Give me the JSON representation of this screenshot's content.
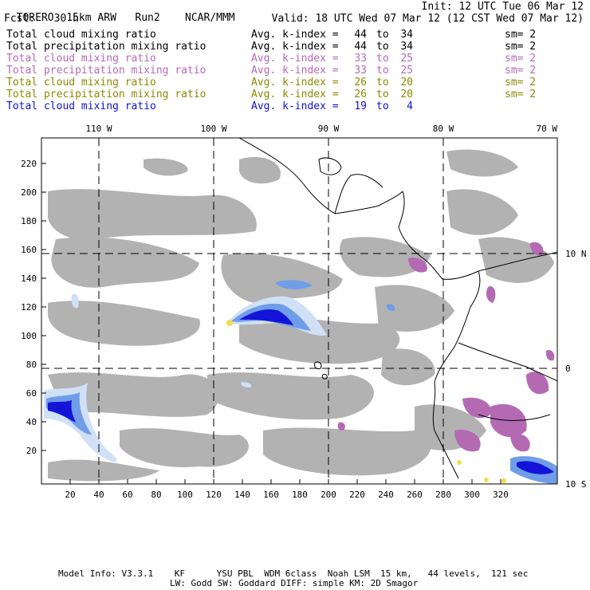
{
  "header": {
    "model": "TORERO",
    "resolution": "15km ARW",
    "run": "Run2",
    "org": "NCAR/MMM",
    "init": "Init: 12 UTC Tue 06 Mar 12",
    "fcst_label": "Fcst:",
    "fcst_value": "30 h",
    "valid": "Valid: 18 UTC Wed 07 Mar 12 (12 CST Wed 07 Mar 12)"
  },
  "legend_rows": [
    {
      "field": "Total cloud mixing ratio",
      "label": "Avg. k-index =",
      "k_from": "44",
      "to": "to",
      "k_to": "34",
      "sm": "sm= 2",
      "color": "#000000"
    },
    {
      "field": "Total precipitation mixing ratio",
      "label": "Avg. k-index =",
      "k_from": "44",
      "to": "to",
      "k_to": "34",
      "sm": "sm= 2",
      "color": "#000000"
    },
    {
      "field": "Total cloud mixing ratio",
      "label": "Avg. k-index =",
      "k_from": "33",
      "to": "to",
      "k_to": "25",
      "sm": "sm= 2",
      "color": "#b36ab3"
    },
    {
      "field": "Total precipitation mixing ratio",
      "label": "Avg. k-index =",
      "k_from": "33",
      "to": "to",
      "k_to": "25",
      "sm": "sm= 2",
      "color": "#b36ab3"
    },
    {
      "field": "Total cloud mixing ratio",
      "label": "Avg. k-index =",
      "k_from": "26",
      "to": "to",
      "k_to": "20",
      "sm": "sm= 2",
      "color": "#8a8a00"
    },
    {
      "field": "Total precipitation mixing ratio",
      "label": "Avg. k-index =",
      "k_from": "26",
      "to": "to",
      "k_to": "20",
      "sm": "sm= 2",
      "color": "#8a8a00"
    },
    {
      "field": "Total cloud mixing ratio",
      "label": "Avg. k-index =",
      "k_from": "19",
      "to": "to",
      "k_to": "4",
      "sm": "",
      "color": "#1010d0"
    }
  ],
  "map": {
    "top_lon_labels": [
      "110 W",
      "100 W",
      "90 W",
      "80 W",
      "70 W"
    ],
    "right_lat_labels": [
      "10 N",
      "0",
      "10 S"
    ],
    "y_grid_labels": [
      "220",
      "200",
      "180",
      "160",
      "140",
      "120",
      "100",
      "80",
      "60",
      "40",
      "20"
    ],
    "x_grid_labels": [
      "20",
      "40",
      "60",
      "80",
      "100",
      "120",
      "140",
      "160",
      "180",
      "200",
      "220",
      "240",
      "260",
      "280",
      "300",
      "320"
    ]
  },
  "footer": {
    "line1": "Model Info: V3.3.1    KF      YSU PBL  WDM 6class  Noah LSM  15 km,   44 levels,  121 sec",
    "line2": "LW: Godd SW: Goddard DIFF: simple KM: 2D Smagor"
  },
  "colors": {
    "cloud_gray": "#aaaaaa",
    "purple": "#b36ab3",
    "blue_light": "#cfe0f7",
    "blue_mid": "#6f9de8",
    "blue_dark": "#1414d8",
    "yellow": "#f2dc50"
  }
}
